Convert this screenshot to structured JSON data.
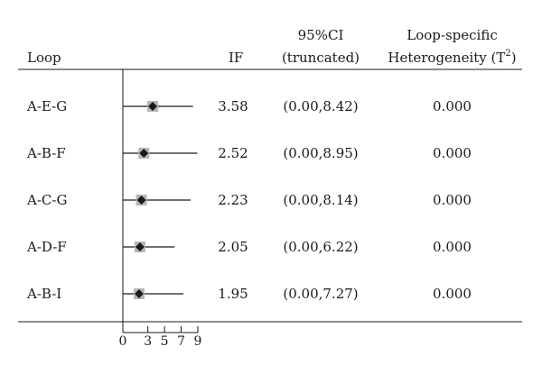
{
  "chart_data": {
    "type": "table",
    "columns": {
      "loop": "Loop",
      "if": "IF",
      "ci_line1": "95%CI",
      "ci_line2": "(truncated)",
      "het_line1": "Loop-specific",
      "het_line2_prefix": "Heterogeneity (T",
      "het_line2_sup": "2",
      "het_line2_suffix": ")"
    },
    "rows": [
      {
        "loop": "A-E-G",
        "if": 3.58,
        "if_label": "3.58",
        "ci_low": 0.0,
        "ci_high": 8.42,
        "ci_label": "(0.00,8.42)",
        "heterogeneity": "0.000"
      },
      {
        "loop": "A-B-F",
        "if": 2.52,
        "if_label": "2.52",
        "ci_low": 0.0,
        "ci_high": 8.95,
        "ci_label": "(0.00,8.95)",
        "heterogeneity": "0.000"
      },
      {
        "loop": "A-C-G",
        "if": 2.23,
        "if_label": "2.23",
        "ci_low": 0.0,
        "ci_high": 8.14,
        "ci_label": "(0.00,8.14)",
        "heterogeneity": "0.000"
      },
      {
        "loop": "A-D-F",
        "if": 2.05,
        "if_label": "2.05",
        "ci_low": 0.0,
        "ci_high": 6.22,
        "ci_label": "(0.00,6.22)",
        "heterogeneity": "0.000"
      },
      {
        "loop": "A-B-I",
        "if": 1.95,
        "if_label": "1.95",
        "ci_low": 0.0,
        "ci_high": 7.27,
        "ci_label": "(0.00,7.27)",
        "heterogeneity": "0.000"
      }
    ],
    "x_axis": {
      "ticks": [
        0,
        3,
        5,
        7,
        9
      ],
      "tick_labels": [
        "0",
        "3",
        "5",
        "7",
        "9"
      ],
      "range": [
        0,
        9
      ]
    },
    "colors": {
      "marker": "#1a1a1a",
      "marker_box": "#b5b5b5",
      "lines": "#1a1a1a"
    }
  }
}
